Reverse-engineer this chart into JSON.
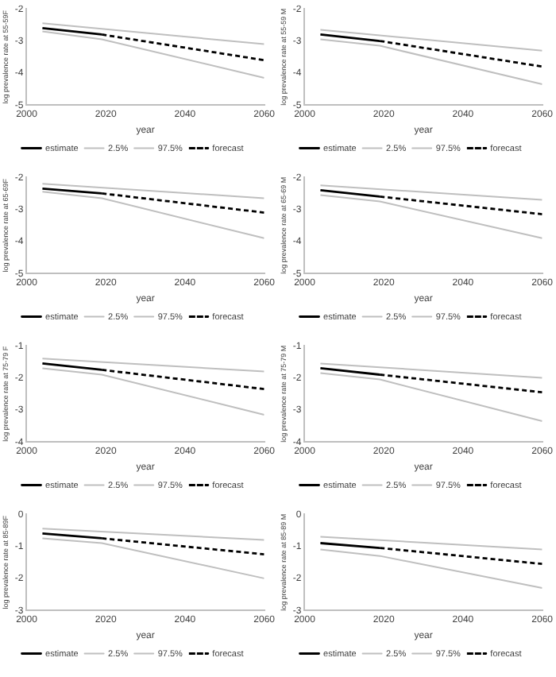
{
  "chart_data": [
    {
      "type": "line",
      "xlabel": "year",
      "ylabel": "log prevalence rate at 55-59F",
      "xlim": [
        2000,
        2060
      ],
      "xticks": [
        2000,
        2020,
        2040,
        2060
      ],
      "ylim": [
        -5,
        -2
      ],
      "yticks": [
        -5,
        -4,
        -3,
        -2
      ],
      "grid": false,
      "legend": "bottom",
      "series": [
        {
          "name": "estimate",
          "color": "#000000",
          "line_style": "solid",
          "x": [
            2004,
            2019
          ],
          "values": [
            -2.6,
            -2.8
          ]
        },
        {
          "name": "2.5%",
          "color": "#bfbfbf",
          "line_style": "solid",
          "x": [
            2004,
            2019,
            2060
          ],
          "values": [
            -2.7,
            -2.95,
            -4.15
          ]
        },
        {
          "name": "97.5%",
          "color": "#bfbfbf",
          "line_style": "solid",
          "x": [
            2004,
            2060
          ],
          "values": [
            -2.45,
            -3.1
          ]
        },
        {
          "name": "forecast",
          "color": "#000000",
          "line_style": "dashed",
          "x": [
            2019,
            2060
          ],
          "values": [
            -2.8,
            -3.6
          ]
        }
      ]
    },
    {
      "type": "line",
      "xlabel": "year",
      "ylabel": "log prevalence rate at 55-59 M",
      "xlim": [
        2000,
        2060
      ],
      "xticks": [
        2000,
        2020,
        2040,
        2060
      ],
      "ylim": [
        -5,
        -2
      ],
      "yticks": [
        -5,
        -4,
        -3,
        -2
      ],
      "grid": false,
      "legend": "bottom",
      "series": [
        {
          "name": "estimate",
          "color": "#000000",
          "line_style": "solid",
          "x": [
            2004,
            2019
          ],
          "values": [
            -2.8,
            -3.0
          ]
        },
        {
          "name": "2.5%",
          "color": "#bfbfbf",
          "line_style": "solid",
          "x": [
            2004,
            2019,
            2060
          ],
          "values": [
            -2.95,
            -3.15,
            -4.35
          ]
        },
        {
          "name": "97.5%",
          "color": "#bfbfbf",
          "line_style": "solid",
          "x": [
            2004,
            2060
          ],
          "values": [
            -2.65,
            -3.3
          ]
        },
        {
          "name": "forecast",
          "color": "#000000",
          "line_style": "dashed",
          "x": [
            2019,
            2060
          ],
          "values": [
            -3.0,
            -3.8
          ]
        }
      ]
    },
    {
      "type": "line",
      "xlabel": "year",
      "ylabel": "log prevalence rate at 65-69F",
      "xlim": [
        2000,
        2060
      ],
      "xticks": [
        2000,
        2020,
        2040,
        2060
      ],
      "ylim": [
        -5,
        -2
      ],
      "yticks": [
        -5,
        -4,
        -3,
        -2
      ],
      "grid": false,
      "legend": "bottom",
      "series": [
        {
          "name": "estimate",
          "color": "#000000",
          "line_style": "solid",
          "x": [
            2004,
            2019
          ],
          "values": [
            -2.35,
            -2.5
          ]
        },
        {
          "name": "2.5%",
          "color": "#bfbfbf",
          "line_style": "solid",
          "x": [
            2004,
            2019,
            2060
          ],
          "values": [
            -2.45,
            -2.65,
            -3.9
          ]
        },
        {
          "name": "97.5%",
          "color": "#bfbfbf",
          "line_style": "solid",
          "x": [
            2004,
            2060
          ],
          "values": [
            -2.2,
            -2.65
          ]
        },
        {
          "name": "forecast",
          "color": "#000000",
          "line_style": "dashed",
          "x": [
            2019,
            2060
          ],
          "values": [
            -2.5,
            -3.1
          ]
        }
      ]
    },
    {
      "type": "line",
      "xlabel": "year",
      "ylabel": "log prevalence rate at 65-69 M",
      "xlim": [
        2000,
        2060
      ],
      "xticks": [
        2000,
        2020,
        2040,
        2060
      ],
      "ylim": [
        -5,
        -2
      ],
      "yticks": [
        -5,
        -4,
        -3,
        -2
      ],
      "grid": false,
      "legend": "bottom",
      "series": [
        {
          "name": "estimate",
          "color": "#000000",
          "line_style": "solid",
          "x": [
            2004,
            2019
          ],
          "values": [
            -2.4,
            -2.6
          ]
        },
        {
          "name": "2.5%",
          "color": "#bfbfbf",
          "line_style": "solid",
          "x": [
            2004,
            2019,
            2060
          ],
          "values": [
            -2.55,
            -2.75,
            -3.9
          ]
        },
        {
          "name": "97.5%",
          "color": "#bfbfbf",
          "line_style": "solid",
          "x": [
            2004,
            2060
          ],
          "values": [
            -2.25,
            -2.7
          ]
        },
        {
          "name": "forecast",
          "color": "#000000",
          "line_style": "dashed",
          "x": [
            2019,
            2060
          ],
          "values": [
            -2.6,
            -3.15
          ]
        }
      ]
    },
    {
      "type": "line",
      "xlabel": "year",
      "ylabel": "log prevalence rate at 75-79 F",
      "xlim": [
        2000,
        2060
      ],
      "xticks": [
        2000,
        2020,
        2040,
        2060
      ],
      "ylim": [
        -4,
        -1
      ],
      "yticks": [
        -4,
        -3,
        -2,
        -1
      ],
      "grid": false,
      "legend": "bottom",
      "series": [
        {
          "name": "estimate",
          "color": "#000000",
          "line_style": "solid",
          "x": [
            2004,
            2019
          ],
          "values": [
            -1.55,
            -1.75
          ]
        },
        {
          "name": "2.5%",
          "color": "#bfbfbf",
          "line_style": "solid",
          "x": [
            2004,
            2019,
            2060
          ],
          "values": [
            -1.7,
            -1.9,
            -3.15
          ]
        },
        {
          "name": "97.5%",
          "color": "#bfbfbf",
          "line_style": "solid",
          "x": [
            2004,
            2060
          ],
          "values": [
            -1.4,
            -1.8
          ]
        },
        {
          "name": "forecast",
          "color": "#000000",
          "line_style": "dashed",
          "x": [
            2019,
            2060
          ],
          "values": [
            -1.75,
            -2.35
          ]
        }
      ]
    },
    {
      "type": "line",
      "xlabel": "year",
      "ylabel": "log prevalence rate at 75-79 M",
      "xlim": [
        2000,
        2060
      ],
      "xticks": [
        2000,
        2020,
        2040,
        2060
      ],
      "ylim": [
        -4,
        -1
      ],
      "yticks": [
        -4,
        -3,
        -2,
        -1
      ],
      "grid": false,
      "legend": "bottom",
      "series": [
        {
          "name": "estimate",
          "color": "#000000",
          "line_style": "solid",
          "x": [
            2004,
            2019
          ],
          "values": [
            -1.7,
            -1.9
          ]
        },
        {
          "name": "2.5%",
          "color": "#bfbfbf",
          "line_style": "solid",
          "x": [
            2004,
            2019,
            2060
          ],
          "values": [
            -1.85,
            -2.05,
            -3.35
          ]
        },
        {
          "name": "97.5%",
          "color": "#bfbfbf",
          "line_style": "solid",
          "x": [
            2004,
            2060
          ],
          "values": [
            -1.55,
            -2.0
          ]
        },
        {
          "name": "forecast",
          "color": "#000000",
          "line_style": "dashed",
          "x": [
            2019,
            2060
          ],
          "values": [
            -1.9,
            -2.45
          ]
        }
      ]
    },
    {
      "type": "line",
      "xlabel": "year",
      "ylabel": "log prevalence rate at 85-89F",
      "xlim": [
        2000,
        2060
      ],
      "xticks": [
        2000,
        2020,
        2040,
        2060
      ],
      "ylim": [
        -3,
        0
      ],
      "yticks": [
        -3,
        -2,
        -1,
        0
      ],
      "grid": false,
      "legend": "bottom",
      "series": [
        {
          "name": "estimate",
          "color": "#000000",
          "line_style": "solid",
          "x": [
            2004,
            2019
          ],
          "values": [
            -0.6,
            -0.75
          ]
        },
        {
          "name": "2.5%",
          "color": "#bfbfbf",
          "line_style": "solid",
          "x": [
            2004,
            2019,
            2060
          ],
          "values": [
            -0.75,
            -0.9,
            -2.0
          ]
        },
        {
          "name": "97.5%",
          "color": "#bfbfbf",
          "line_style": "solid",
          "x": [
            2004,
            2060
          ],
          "values": [
            -0.45,
            -0.8
          ]
        },
        {
          "name": "forecast",
          "color": "#000000",
          "line_style": "dashed",
          "x": [
            2019,
            2060
          ],
          "values": [
            -0.75,
            -1.25
          ]
        }
      ]
    },
    {
      "type": "line",
      "xlabel": "year",
      "ylabel": "log prevalence rate at 85-89 M",
      "xlim": [
        2000,
        2060
      ],
      "xticks": [
        2000,
        2020,
        2040,
        2060
      ],
      "ylim": [
        -3,
        0
      ],
      "yticks": [
        -3,
        -2,
        -1,
        0
      ],
      "grid": false,
      "legend": "bottom",
      "series": [
        {
          "name": "estimate",
          "color": "#000000",
          "line_style": "solid",
          "x": [
            2004,
            2019
          ],
          "values": [
            -0.9,
            -1.05
          ]
        },
        {
          "name": "2.5%",
          "color": "#bfbfbf",
          "line_style": "solid",
          "x": [
            2004,
            2019,
            2060
          ],
          "values": [
            -1.1,
            -1.3,
            -2.3
          ]
        },
        {
          "name": "97.5%",
          "color": "#bfbfbf",
          "line_style": "solid",
          "x": [
            2004,
            2060
          ],
          "values": [
            -0.7,
            -1.1
          ]
        },
        {
          "name": "forecast",
          "color": "#000000",
          "line_style": "dashed",
          "x": [
            2019,
            2060
          ],
          "values": [
            -1.05,
            -1.55
          ]
        }
      ]
    }
  ]
}
